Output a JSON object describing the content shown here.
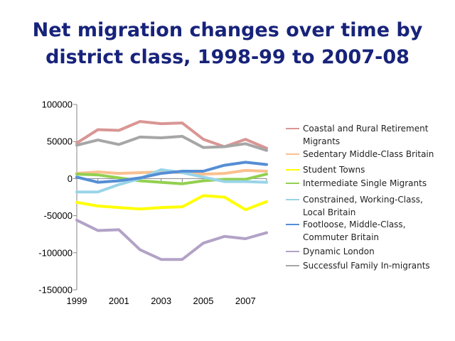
{
  "title": "Net migration changes over time by district class, 1998-99 to 2007-08",
  "chart_data": {
    "type": "line",
    "title": "Net migration changes over time by district class, 1998-99 to 2007-08",
    "x": [
      1999,
      2000,
      2001,
      2002,
      2003,
      2004,
      2005,
      2006,
      2007,
      2008
    ],
    "xticks": [
      "1999",
      "2001",
      "2003",
      "2005",
      "2007"
    ],
    "yticks": [
      "100000",
      "50000",
      "0",
      "-50000",
      "-100000",
      "-150000"
    ],
    "ylim": [
      -150000,
      100000
    ],
    "xlim": [
      1999,
      2008
    ],
    "grid": false,
    "legend_position": "right",
    "series": [
      {
        "name": "Coastal and Rural Retirement Migrants",
        "color": "#d99694",
        "values": [
          48000,
          66000,
          65000,
          77000,
          74000,
          75000,
          53000,
          43000,
          53000,
          41000
        ]
      },
      {
        "name": "Sedentary Middle-Class Britain",
        "color": "#fac090",
        "values": [
          7000,
          9000,
          7000,
          8000,
          9000,
          8000,
          6000,
          7000,
          11000,
          10000
        ]
      },
      {
        "name": "Student Towns",
        "color": "#ffff00",
        "values": [
          -32000,
          -37000,
          -39000,
          -41000,
          -39000,
          -38000,
          -23000,
          -25000,
          -42000,
          -31000
        ]
      },
      {
        "name": "Intermediate Single Migrants",
        "color": "#92d050",
        "values": [
          6000,
          5000,
          1000,
          -3000,
          -5000,
          -7000,
          -3000,
          -1000,
          -1000,
          6000
        ]
      },
      {
        "name": "Constrained, Working-Class, Local Britain",
        "color": "#9ad4e8",
        "values": [
          -18000,
          -18000,
          -8000,
          0,
          12000,
          8000,
          2000,
          -4000,
          -4000,
          -5000
        ]
      },
      {
        "name": "Footloose, Middle-Class, Commuter Britain",
        "color": "#558ed5",
        "values": [
          2000,
          -5000,
          -3000,
          1000,
          7000,
          10000,
          10000,
          18000,
          22000,
          19000
        ]
      },
      {
        "name": "Dynamic London",
        "color": "#b3a2c7",
        "values": [
          -56000,
          -70000,
          -69000,
          -96000,
          -109000,
          -109000,
          -87000,
          -78000,
          -81000,
          -73000
        ]
      },
      {
        "name": "Successful Family In-migrants",
        "color": "#a6a6a6",
        "values": [
          45000,
          52000,
          46000,
          56000,
          55000,
          57000,
          42000,
          43000,
          47000,
          38000
        ]
      }
    ],
    "legend_labels": [
      [
        "Coastal and Rural Retirement",
        "Migrants"
      ],
      [
        "Sedentary Middle-Class Britain"
      ],
      [
        "Student Towns"
      ],
      [
        "Intermediate Single Migrants"
      ],
      [
        "Constrained, Working-Class,",
        "Local Britain"
      ],
      [
        "Footloose, Middle-Class,",
        "Commuter Britain"
      ],
      [
        "Dynamic London"
      ],
      [
        "Successful Family In-migrants"
      ]
    ]
  }
}
